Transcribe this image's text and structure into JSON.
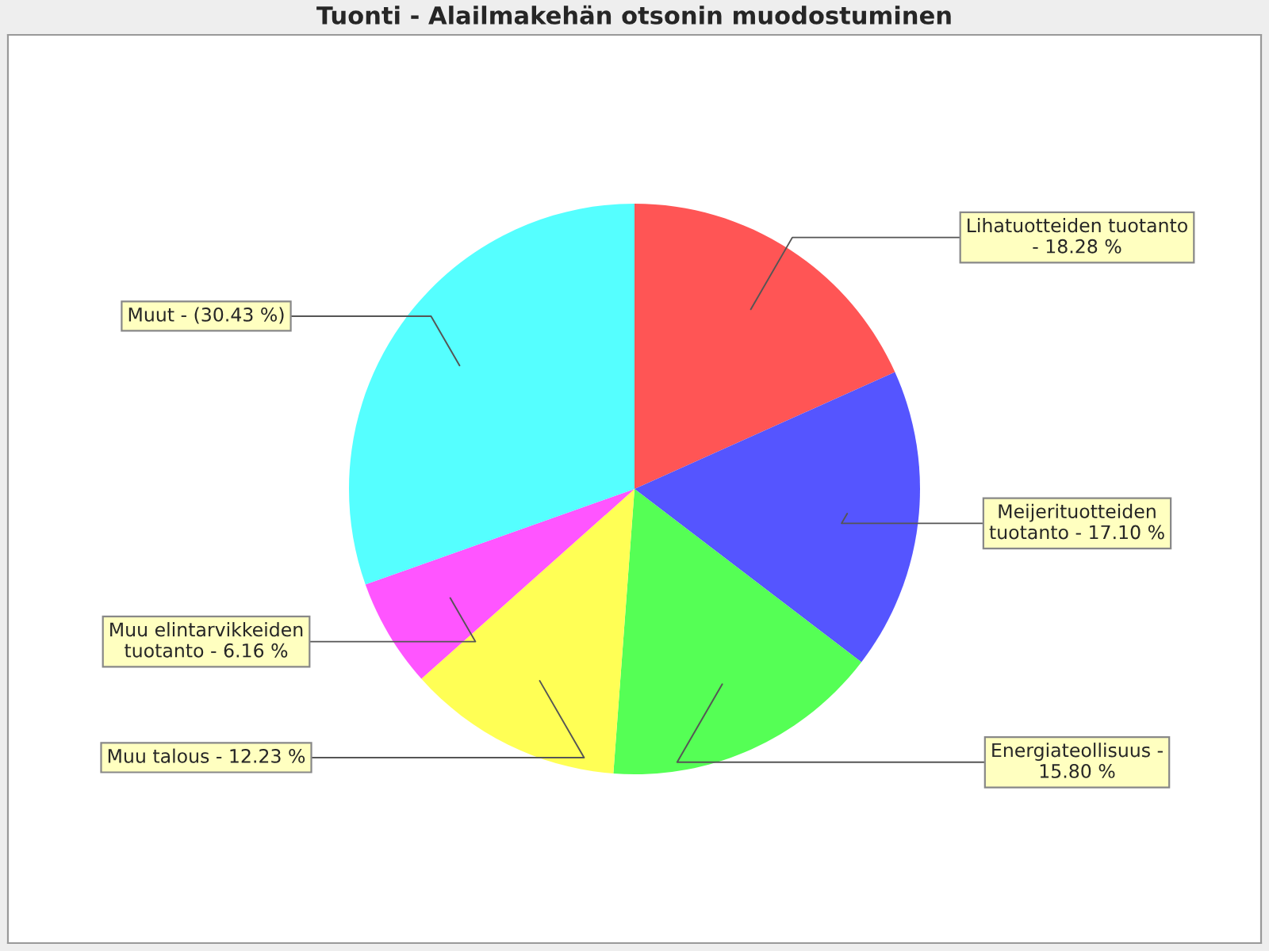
{
  "chart_data": {
    "type": "pie",
    "title": "Tuonti - Alailmakehän otsonin muodostuminen",
    "categories": [
      "Lihatuotteiden tuotanto\n- 18.28 %",
      "Meijerituotteiden\ntuotanto - 17.10 %",
      "Energiateollisuus -\n15.80 %",
      "Muu talous - 12.23 %",
      "Muu elintarvikkeiden\ntuotanto - 6.16 %",
      "Muut - (30.43 %)"
    ],
    "values": [
      18.28,
      17.1,
      15.8,
      12.23,
      6.16,
      30.43
    ],
    "colors": [
      "#ff5555",
      "#5555ff",
      "#55ff55",
      "#ffff55",
      "#ff55ff",
      "#55ffff"
    ]
  }
}
